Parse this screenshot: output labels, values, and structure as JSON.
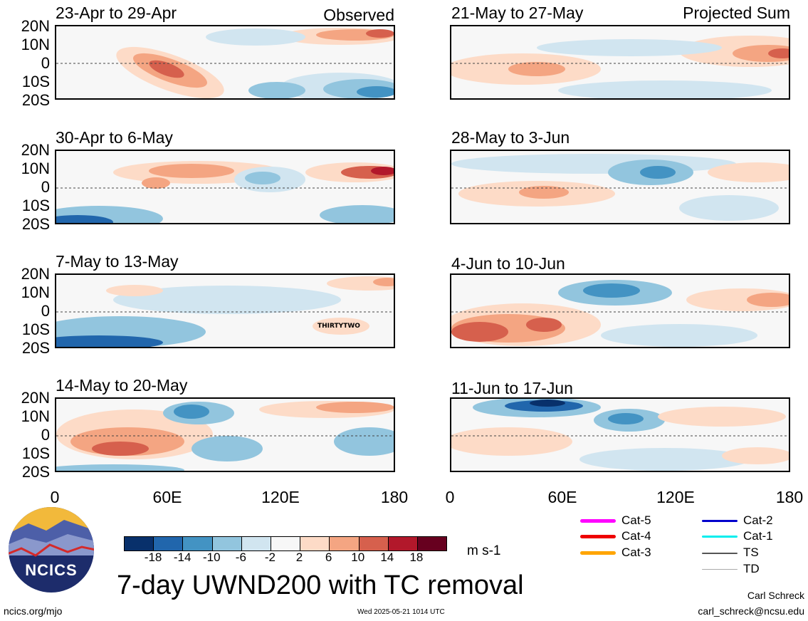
{
  "panels": [
    {
      "title": "23-Apr to 29-Apr",
      "tag": "Observed"
    },
    {
      "title": "30-Apr to 6-May",
      "tag": ""
    },
    {
      "title": "7-May to 13-May",
      "tag": "",
      "storm_label": "THIRTYTWO"
    },
    {
      "title": "14-May to 20-May",
      "tag": ""
    },
    {
      "title": "21-May to 27-May",
      "tag": "Projected Sum"
    },
    {
      "title": "28-May to 3-Jun",
      "tag": ""
    },
    {
      "title": "4-Jun to 10-Jun",
      "tag": ""
    },
    {
      "title": "11-Jun to 17-Jun",
      "tag": ""
    }
  ],
  "lat_labels": [
    "20N",
    "10N",
    "0",
    "10S",
    "20S"
  ],
  "lon_labels": [
    "0",
    "60E",
    "120E",
    "180"
  ],
  "colorbar": {
    "colors": [
      "#08306b",
      "#2166ac",
      "#4393c3",
      "#92c5de",
      "#d1e5f0",
      "#f7f7f7",
      "#fddbc7",
      "#f4a582",
      "#d6604d",
      "#b2182b",
      "#67001f"
    ],
    "labels": [
      "-18",
      "-14",
      "-10",
      "-6",
      "-2",
      "2",
      "6",
      "10",
      "14",
      "18"
    ],
    "units": "m s-1"
  },
  "title": "7-day UWND200 with TC removal",
  "logo_text": "NCICS",
  "site": "ncics.org/mjo",
  "timestamp": "Wed 2025-05-21 1014 UTC",
  "author": "Carl Schreck",
  "email": "carl_schreck@ncsu.edu",
  "legend": [
    {
      "label": "Cat-5",
      "color": "#ff00ff"
    },
    {
      "label": "Cat-4",
      "color": "#ee0000"
    },
    {
      "label": "Cat-3",
      "color": "#ffa500"
    },
    {
      "label": "Cat-2",
      "color": "#0000cc"
    },
    {
      "label": "Cat-1",
      "color": "#00eeee"
    },
    {
      "label": "TS",
      "color": "#555555"
    },
    {
      "label": "TD",
      "color": "#aaaaaa"
    }
  ]
}
